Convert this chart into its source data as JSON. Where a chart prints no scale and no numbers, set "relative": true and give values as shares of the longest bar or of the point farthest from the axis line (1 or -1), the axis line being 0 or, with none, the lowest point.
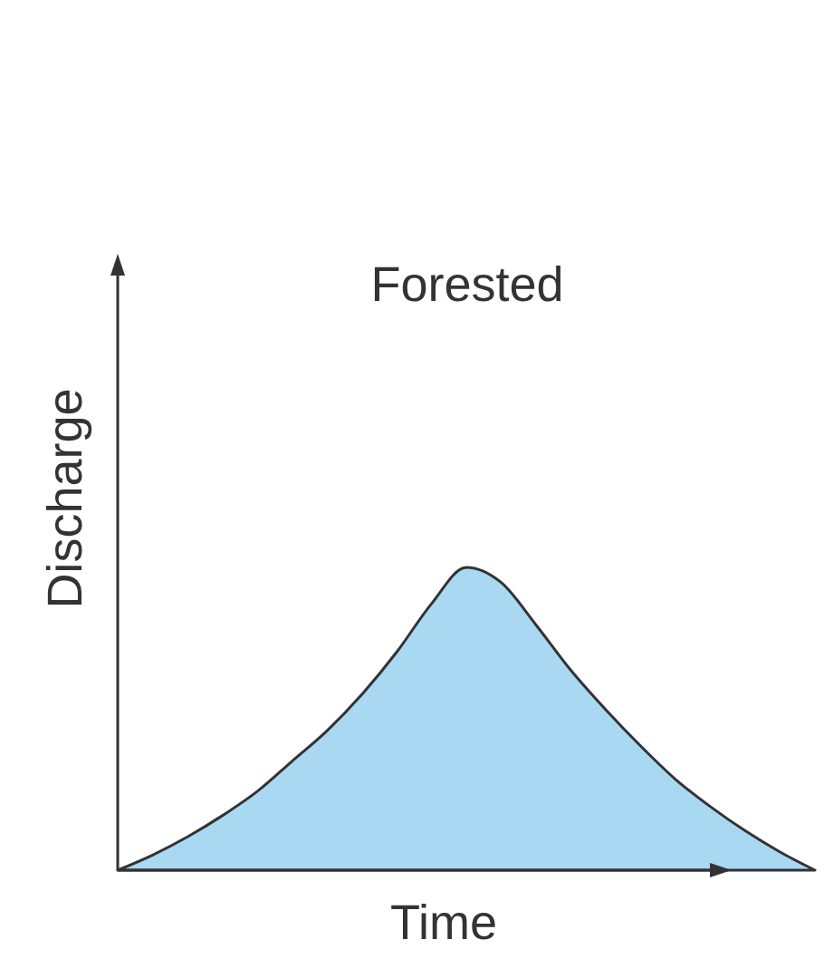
{
  "chart_data": {
    "type": "area",
    "title": "Forested",
    "xlabel": "Time",
    "ylabel": "Discharge",
    "relative": true,
    "categories": [
      null,
      null,
      null,
      null,
      null,
      null,
      null,
      null,
      null,
      null,
      null,
      null,
      null,
      null,
      null,
      null,
      null,
      null,
      null,
      null,
      null
    ],
    "series": [
      {
        "color": "#a9d9f2",
        "values": [
          0,
          0.05,
          0.11,
          0.18,
          0.26,
          0.36,
          0.46,
          0.58,
          0.72,
          0.88,
          1,
          0.95,
          0.81,
          0.66,
          0.53,
          0.41,
          0.3,
          0.21,
          0.13,
          0.06,
          0
        ]
      }
    ]
  }
}
